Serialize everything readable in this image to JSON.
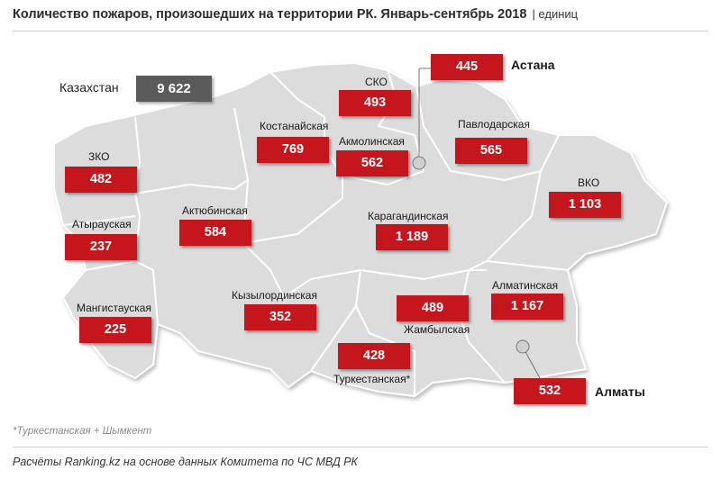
{
  "title": "Количество пожаров, произошедших на территории РК. Январь-сентябрь 2018",
  "unit": "| единиц",
  "total": {
    "label": "Казахстан",
    "value": "9 622"
  },
  "regions": [
    {
      "name": "ЗКО",
      "value": "482"
    },
    {
      "name": "Атырауская",
      "value": "237"
    },
    {
      "name": "Мангистауская",
      "value": "225"
    },
    {
      "name": "Актюбинская",
      "value": "584"
    },
    {
      "name": "Костанайская",
      "value": "769"
    },
    {
      "name": "СКО",
      "value": "493"
    },
    {
      "name": "Акмолинская",
      "value": "562"
    },
    {
      "name": "Павлодарская",
      "value": "565"
    },
    {
      "name": "ВКО",
      "value": "1 103"
    },
    {
      "name": "Карагандинская",
      "value": "1 189"
    },
    {
      "name": "Кызылординская",
      "value": "352"
    },
    {
      "name": "Жамбылская",
      "value": "489"
    },
    {
      "name": "Алматинская",
      "value": "1 167"
    },
    {
      "name": "Туркестанская*",
      "value": "428"
    }
  ],
  "cities": [
    {
      "name": "Астана",
      "value": "445"
    },
    {
      "name": "Алматы",
      "value": "532"
    }
  ],
  "footnote": "*Туркестанская + Шымкент",
  "source": "Расчёты Ranking.kz на основе данных Комитета по ЧС МВД РК",
  "colors": {
    "value_box": "#c4161c",
    "total_box": "#5a5a5a",
    "map_fill": "#dcdcdc",
    "border": "#ffffff"
  }
}
